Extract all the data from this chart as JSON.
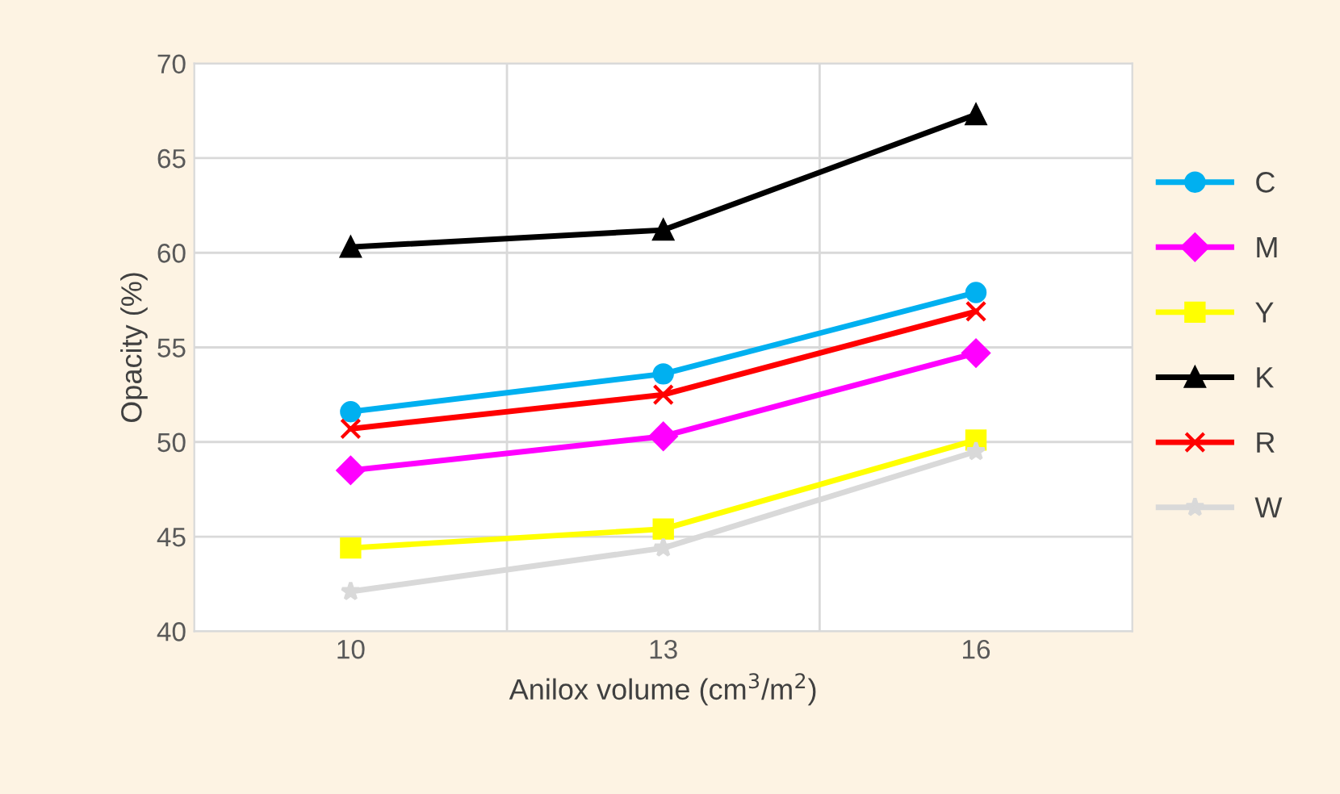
{
  "chart_data": {
    "type": "line",
    "xlabel": "Anilox volume (cm$^{3}$/m$^{2}$)",
    "ylabel": "Opacity (%)",
    "categories": [
      "10",
      "13",
      "16"
    ],
    "series": [
      {
        "name": "C",
        "color": "#00b0f0",
        "marker": "circle",
        "values": [
          51.6,
          53.6,
          57.9
        ]
      },
      {
        "name": "M",
        "color": "#ff00ff",
        "marker": "diamond",
        "values": [
          48.5,
          50.3,
          54.7
        ]
      },
      {
        "name": "Y",
        "color": "#ffff00",
        "marker": "square",
        "values": [
          44.4,
          45.4,
          50.1
        ]
      },
      {
        "name": "K",
        "color": "#000000",
        "marker": "triangle",
        "values": [
          60.3,
          61.2,
          67.3
        ]
      },
      {
        "name": "R",
        "color": "#ff0000",
        "marker": "cross",
        "values": [
          50.7,
          52.5,
          56.9
        ]
      },
      {
        "name": "W",
        "color": "#d9d9d9",
        "marker": "star",
        "values": [
          42.1,
          44.4,
          49.5
        ]
      }
    ],
    "ylim": [
      40,
      70
    ],
    "yticks": [
      40,
      45,
      50,
      55,
      60,
      65,
      70
    ],
    "grid": true,
    "legend": "right",
    "line_style": "solid"
  }
}
